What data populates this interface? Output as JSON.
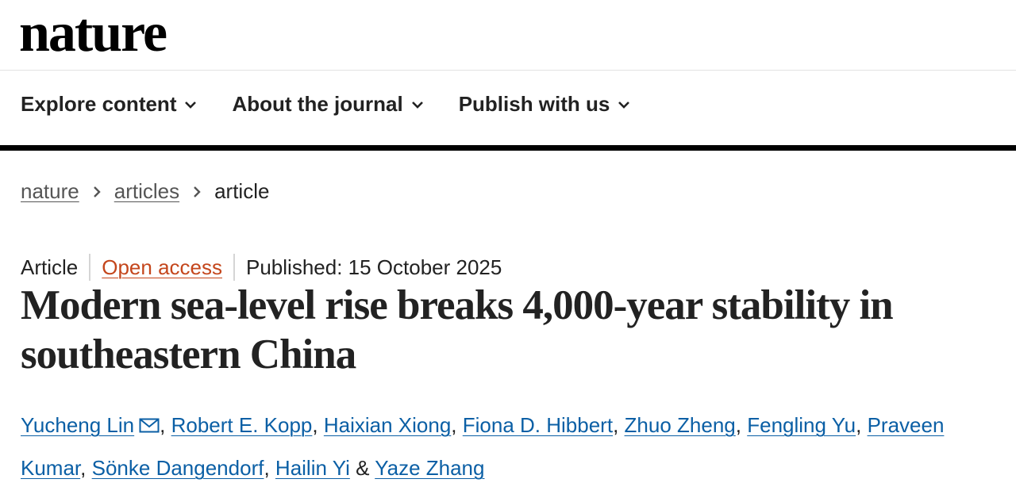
{
  "header": {
    "logo": "nature"
  },
  "nav": {
    "items": [
      "Explore content",
      "About the journal",
      "Publish with us"
    ]
  },
  "breadcrumbs": [
    "nature",
    "articles",
    "article"
  ],
  "article": {
    "type": "Article",
    "access": "Open access",
    "published": "Published: 15 October 2025",
    "title": "Modern sea-level rise breaks 4,000-year stability in southeastern China",
    "authors": [
      "Yucheng Lin",
      "Robert E. Kopp",
      "Haixian Xiong",
      "Fiona D. Hibbert",
      "Zhuo Zheng",
      "Fengling Yu",
      "Praveen Kumar",
      "Sönke Dangendorf",
      "Hailin Yi",
      "Yaze Zhang"
    ],
    "author_separator": ",",
    "author_conjunction": "&"
  }
}
